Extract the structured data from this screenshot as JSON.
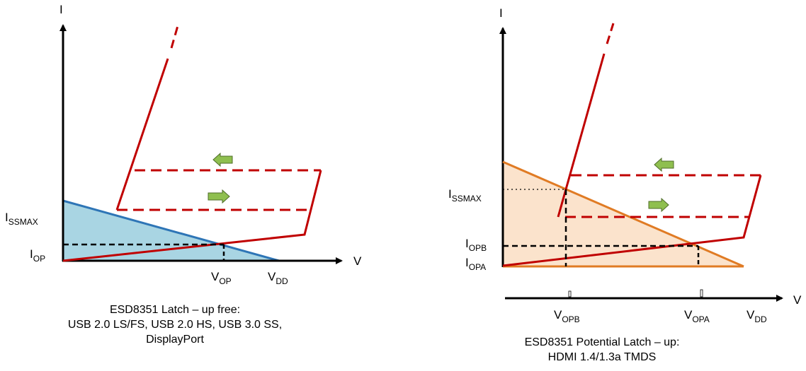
{
  "left": {
    "axis_y_label": "I",
    "axis_x_label": "V",
    "label_issmax": "I",
    "label_issmax_sub": "SSMAX",
    "label_iop": "I",
    "label_iop_sub": "OP",
    "label_vop": "V",
    "label_vop_sub": "OP",
    "label_vdd": "V",
    "label_vdd_sub": "DD",
    "caption_line1": "ESD8351 Latch – up free:",
    "caption_line2": "USB 2.0 LS/FS, USB 2.0 HS, USB 3.0 SS,",
    "caption_line3": "DisplayPort"
  },
  "right": {
    "axis_y_label": "I",
    "axis_x_label": "V",
    "label_issmax": "I",
    "label_issmax_sub": "SSMAX",
    "label_iopb": "I",
    "label_iopb_sub": "OPB",
    "label_iopa": "I",
    "label_iopa_sub": "OPA",
    "label_vopb": "V",
    "label_vopb_sub": "OPB",
    "label_vopa": "V",
    "label_vopa_sub": "OPA",
    "label_vdd": "V",
    "label_vdd_sub": "DD",
    "caption_line1": "ESD8351 Potential Latch – up:",
    "caption_line2": "HDMI 1.4/1.3a TMDS"
  },
  "colors": {
    "snapback_curve": "#c00000",
    "left_load_line": "#2e75b6",
    "left_fill": "#a9d5e3",
    "right_load_line": "#e07b24",
    "right_fill": "#fbe3cc",
    "arrow_green": "#8fbf4f",
    "axis": "#000000"
  }
}
